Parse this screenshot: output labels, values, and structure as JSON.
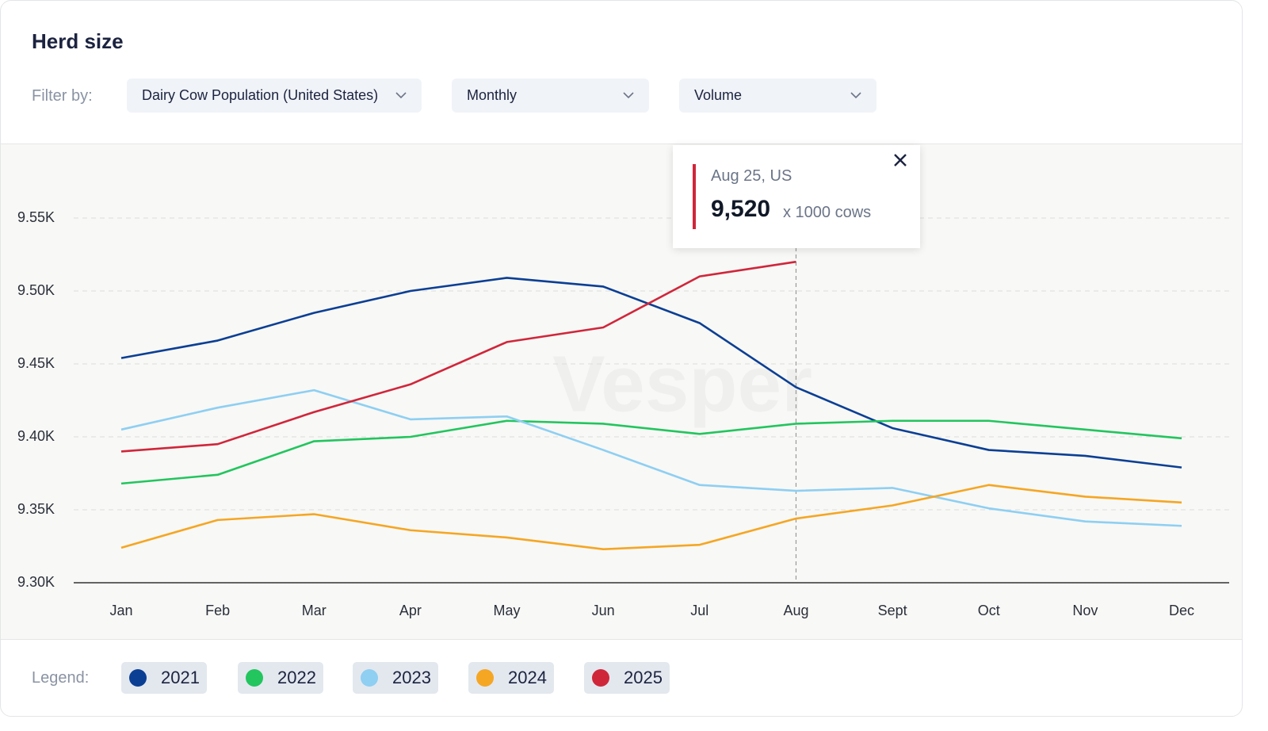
{
  "header": {
    "title": "Herd size"
  },
  "filters": {
    "label": "Filter by:",
    "options": [
      "Dairy Cow Population (United States)",
      "Monthly",
      "Volume"
    ]
  },
  "tooltip": {
    "title": "Aug 25, US",
    "value_label": "9,520",
    "unit": "x 1000 cows"
  },
  "legend_label": "Legend:",
  "watermark": "Vesper",
  "chart_data": {
    "type": "line",
    "categories": [
      "Jan",
      "Feb",
      "Mar",
      "Apr",
      "May",
      "Jun",
      "Jul",
      "Aug",
      "Sept",
      "Oct",
      "Nov",
      "Dec"
    ],
    "ylim": [
      9300,
      9600
    ],
    "yticks": [
      {
        "value": 9300,
        "label": "9.30K"
      },
      {
        "value": 9350,
        "label": "9.35K"
      },
      {
        "value": 9400,
        "label": "9.40K"
      },
      {
        "value": 9450,
        "label": "9.45K"
      },
      {
        "value": 9500,
        "label": "9.50K"
      },
      {
        "value": 9550,
        "label": "9.55K"
      }
    ],
    "grid": true,
    "series": [
      {
        "name": "2021",
        "color": "#0b3f94",
        "values": [
          9454,
          9466,
          9485,
          9500,
          9509,
          9503,
          9478,
          9434,
          9406,
          9391,
          9387,
          9379
        ]
      },
      {
        "name": "2022",
        "color": "#22c55e",
        "values": [
          9368,
          9374,
          9397,
          9400,
          9411,
          9409,
          9402,
          9409,
          9411,
          9411,
          9405,
          9399
        ]
      },
      {
        "name": "2023",
        "color": "#8ecff2",
        "values": [
          9405,
          9420,
          9432,
          9412,
          9414,
          9391,
          9367,
          9363,
          9365,
          9351,
          9342,
          9339
        ]
      },
      {
        "name": "2024",
        "color": "#f5a623",
        "values": [
          9324,
          9343,
          9347,
          9336,
          9331,
          9323,
          9326,
          9344,
          9353,
          9367,
          9359,
          9355
        ]
      },
      {
        "name": "2025",
        "color": "#d0263a",
        "values": [
          9390,
          9395,
          9417,
          9436,
          9465,
          9475,
          9510,
          9520,
          null,
          null,
          null,
          null
        ]
      }
    ]
  }
}
